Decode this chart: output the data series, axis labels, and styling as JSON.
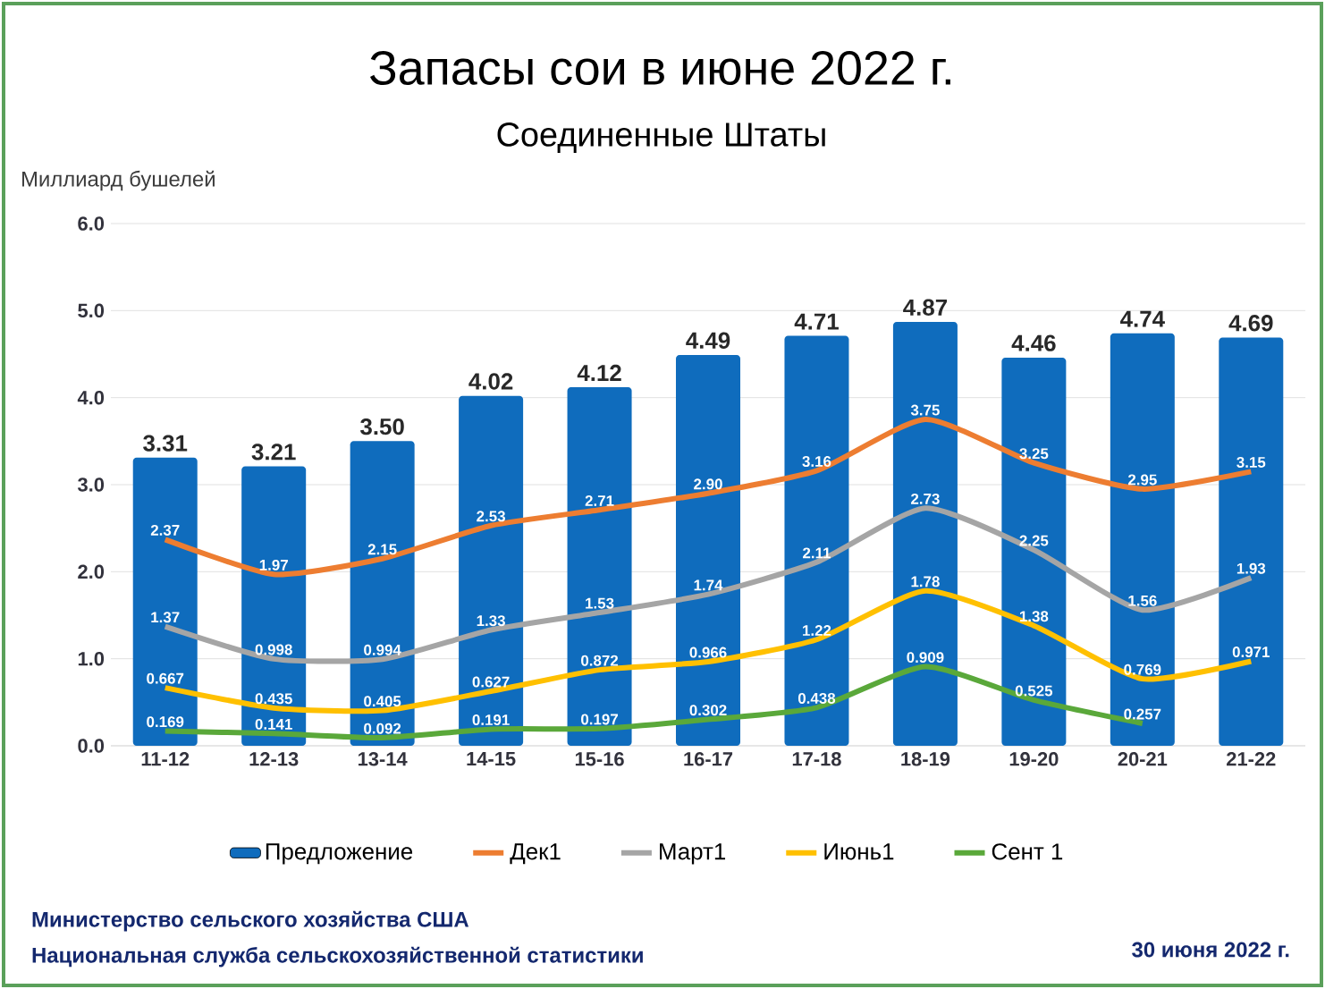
{
  "chart_data": {
    "type": "bar",
    "title": "Запасы сои в июне 2022 г.",
    "subtitle": "Соединенные Штаты",
    "ylabel": "Миллиард бушелей",
    "categories": [
      "11-12",
      "12-13",
      "13-14",
      "14-15",
      "15-16",
      "16-17",
      "17-18",
      "18-19",
      "19-20",
      "20-21",
      "21-22"
    ],
    "series": [
      {
        "name": "Предложение",
        "type": "bar",
        "color": "#0f6cbd",
        "values": [
          3.31,
          3.21,
          3.5,
          4.02,
          4.12,
          4.49,
          4.71,
          4.87,
          4.46,
          4.74,
          4.69
        ],
        "value_labels": [
          "3.31",
          "3.21",
          "3.50",
          "4.02",
          "4.12",
          "4.49",
          "4.71",
          "4.87",
          "4.46",
          "4.74",
          "4.69"
        ]
      },
      {
        "name": "Дек1",
        "type": "line",
        "color": "#ed7d31",
        "values": [
          2.37,
          1.97,
          2.15,
          2.53,
          2.71,
          2.9,
          3.16,
          3.75,
          3.25,
          2.95,
          3.15
        ],
        "value_labels": [
          "2.37",
          "1.97",
          "2.15",
          "2.53",
          "2.71",
          "2.90",
          "3.16",
          "3.75",
          "3.25",
          "2.95",
          "3.15"
        ]
      },
      {
        "name": "Март1",
        "type": "line",
        "color": "#a5a5a5",
        "values": [
          1.37,
          0.998,
          0.994,
          1.33,
          1.53,
          1.74,
          2.11,
          2.73,
          2.25,
          1.56,
          1.93
        ],
        "value_labels": [
          "1.37",
          "0.998",
          "0.994",
          "1.33",
          "1.53",
          "1.74",
          "2.11",
          "2.73",
          "2.25",
          "1.56",
          "1.93"
        ]
      },
      {
        "name": "Июнь1",
        "type": "line",
        "color": "#ffc000",
        "values": [
          0.667,
          0.435,
          0.405,
          0.627,
          0.872,
          0.966,
          1.22,
          1.78,
          1.38,
          0.769,
          0.971
        ],
        "value_labels": [
          "0.667",
          "0.435",
          "0.405",
          "0.627",
          "0.872",
          "0.966",
          "1.22",
          "1.78",
          "1.38",
          "0.769",
          "0.971"
        ]
      },
      {
        "name": "Сент 1",
        "type": "line",
        "color": "#5aa83a",
        "values": [
          0.169,
          0.141,
          0.092,
          0.191,
          0.197,
          0.302,
          0.438,
          0.909,
          0.525,
          0.257,
          null
        ],
        "value_labels": [
          "0.169",
          "0.141",
          "0.092",
          "0.191",
          "0.197",
          "0.302",
          "0.438",
          "0.909",
          "0.525",
          "0.257",
          null
        ]
      }
    ],
    "ylim": [
      0,
      6
    ],
    "yticks": [
      {
        "value": 0,
        "label": "0.0"
      },
      {
        "value": 1,
        "label": "1.0"
      },
      {
        "value": 2,
        "label": "2.0"
      },
      {
        "value": 3,
        "label": "3.0"
      },
      {
        "value": 4,
        "label": "4.0"
      },
      {
        "value": 5,
        "label": "5.0"
      },
      {
        "value": 6,
        "label": "6.0"
      }
    ],
    "grid": "y",
    "legend": "bottom",
    "annotations": [
      "Министерство сельского хозяйства США",
      "Национальная служба сельскохозяйственной статистики",
      "30 июня 2022 г."
    ]
  }
}
